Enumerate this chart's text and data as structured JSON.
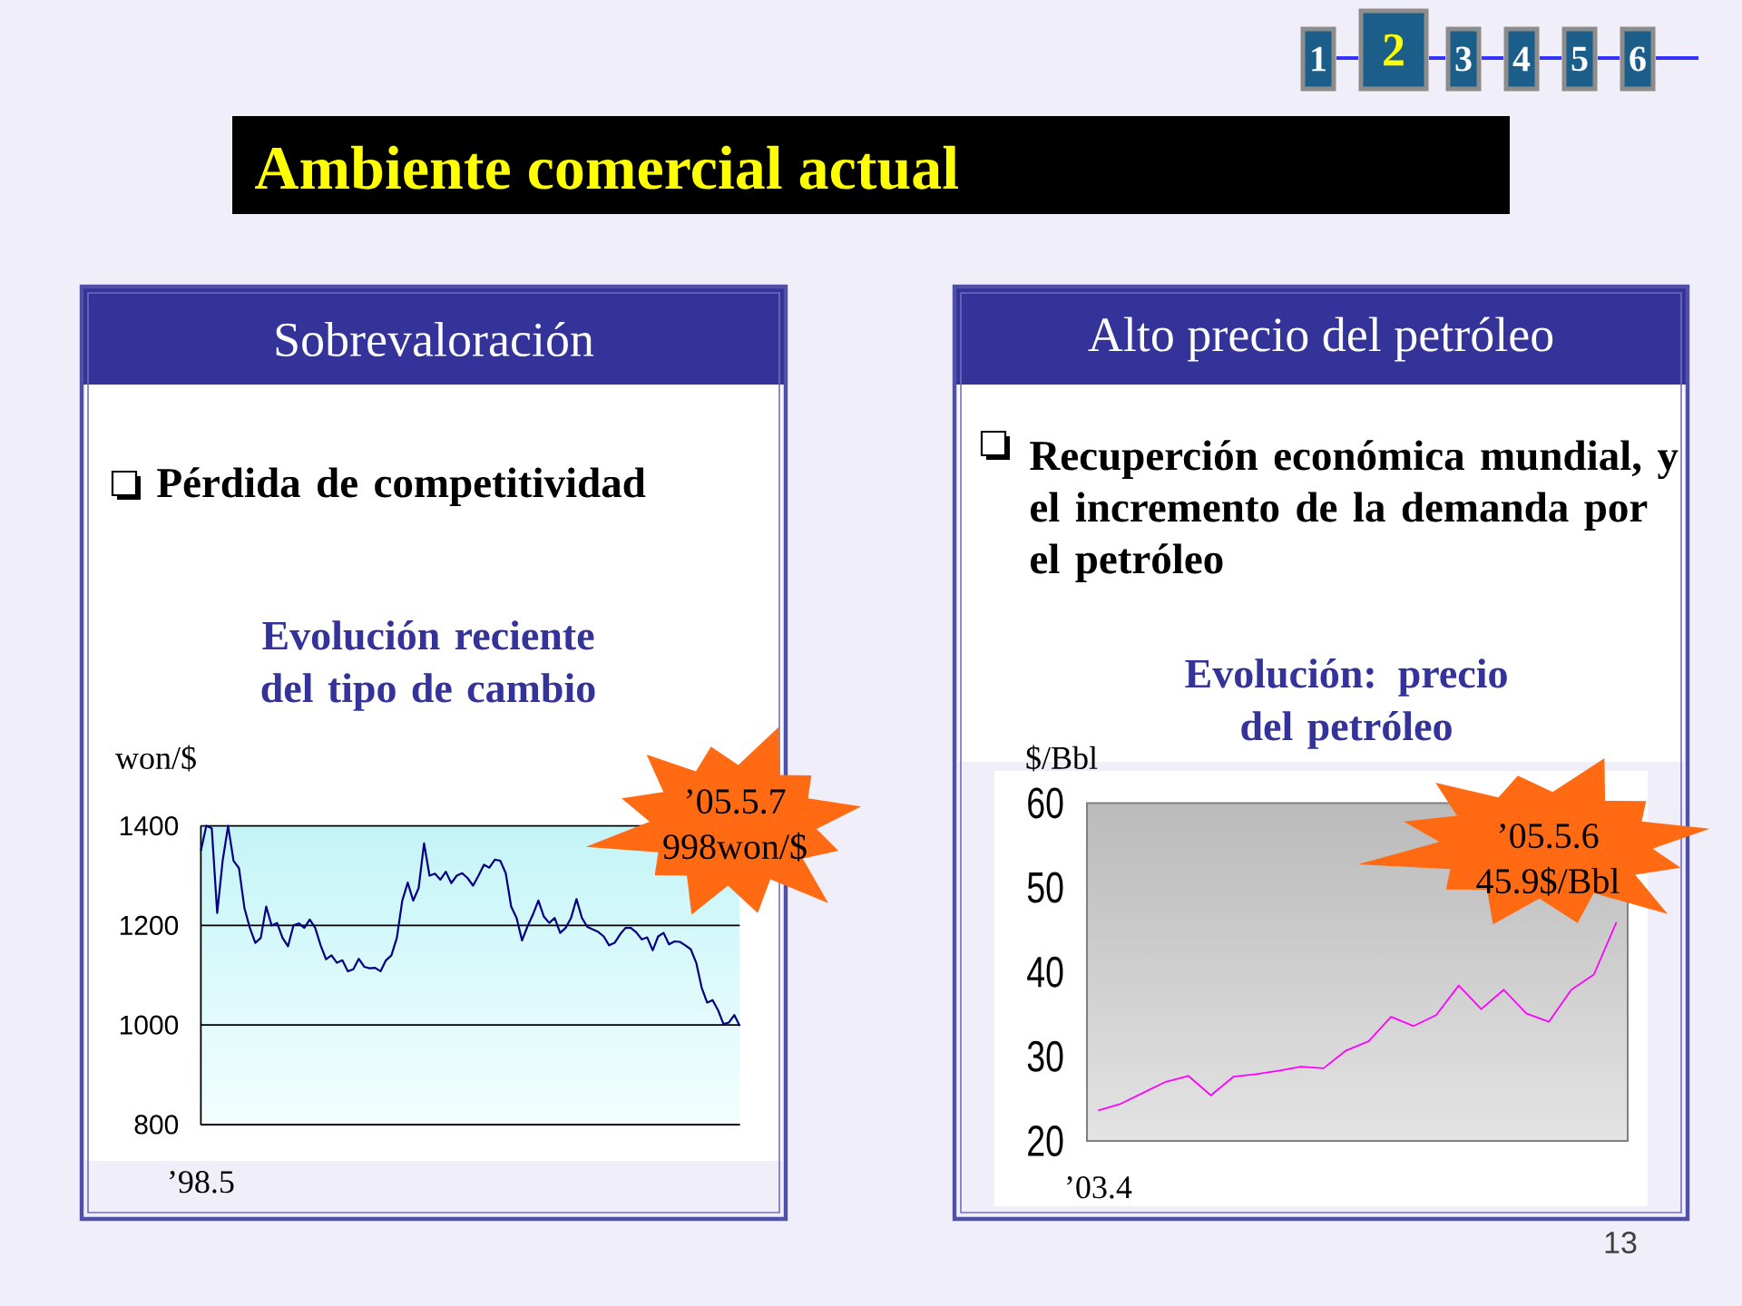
{
  "chart_data": [
    {
      "type": "other",
      "title": "Ambiente comercial actual"
    },
    {
      "type": "line",
      "title": "Evolución reciente del tipo de cambio",
      "ylabel": "won/$",
      "annotations": [
        "Sobrevaloración",
        "Pérdida de competitividad",
        "’05.5.7 998won/$"
      ],
      "categories": [
        "’98.5",
        null,
        null,
        null,
        null,
        null,
        null,
        null,
        null,
        null,
        null,
        null,
        null,
        null,
        null,
        null,
        null,
        null,
        null,
        null,
        null,
        null,
        null,
        null,
        null,
        null,
        null,
        null,
        null,
        null,
        null,
        null,
        null,
        null,
        null,
        null,
        null,
        null,
        null,
        null,
        null,
        null,
        null,
        null,
        null,
        null,
        null,
        null,
        null,
        null,
        null,
        null,
        null,
        null,
        null,
        null,
        null,
        null,
        null,
        null,
        null,
        null,
        null,
        null,
        null,
        null,
        null,
        null,
        null,
        null,
        null,
        null,
        null,
        null,
        null,
        null,
        null,
        null,
        null,
        null,
        null,
        null,
        null,
        null,
        null,
        null,
        null,
        null,
        null,
        null,
        null,
        null,
        null,
        null,
        null,
        null,
        null,
        null,
        null,
        null
      ],
      "series": [
        {
          "color": "#000080",
          "values": [
            1350,
            1400,
            1395,
            1225,
            1330,
            1400,
            1330,
            1315,
            1235,
            1195,
            1165,
            1175,
            1238,
            1200,
            1205,
            1175,
            1158,
            1200,
            1204,
            1195,
            1212,
            1195,
            1160,
            1132,
            1140,
            1125,
            1130,
            1108,
            1112,
            1133,
            1117,
            1114,
            1115,
            1108,
            1130,
            1140,
            1175,
            1250,
            1286,
            1250,
            1275,
            1365,
            1300,
            1304,
            1292,
            1308,
            1285,
            1300,
            1305,
            1295,
            1280,
            1300,
            1322,
            1316,
            1332,
            1330,
            1305,
            1238,
            1215,
            1170,
            1198,
            1222,
            1250,
            1218,
            1205,
            1215,
            1185,
            1195,
            1215,
            1253,
            1215,
            1197,
            1192,
            1187,
            1178,
            1160,
            1165,
            1182,
            1195,
            1195,
            1186,
            1172,
            1176,
            1150,
            1178,
            1185,
            1162,
            1168,
            1167,
            1160,
            1152,
            1125,
            1075,
            1045,
            1050,
            1030,
            1002,
            1005,
            1020,
            998
          ]
        }
      ],
      "ylim": [
        800,
        1400
      ],
      "yticks": [
        800,
        1000,
        1200,
        1400
      ],
      "grid": "y"
    },
    {
      "type": "line",
      "title": "Evolución: precio del petróleo",
      "ylabel": "$/Bbl",
      "annotations": [
        "Alto precio del petróleo",
        "Recuperción económica mundial, y el incremento de la demanda por el petróleo",
        "’05.5.6 45.9$/Bbl",
        "1",
        "2",
        "3",
        "4",
        "5",
        "6",
        "13"
      ],
      "categories": [
        "’03.4",
        null,
        null,
        null,
        null,
        null,
        null,
        null,
        null,
        null,
        null,
        null,
        null,
        null,
        null,
        null,
        null,
        null,
        null,
        null,
        null,
        null,
        null,
        null
      ],
      "series": [
        {
          "color": "#ff00ff",
          "values": [
            23.6,
            24.4,
            25.7,
            27.0,
            27.7,
            25.4,
            27.6,
            27.9,
            28.3,
            28.8,
            28.6,
            30.7,
            31.8,
            34.7,
            33.6,
            34.9,
            38.4,
            35.6,
            37.9,
            35.1,
            34.1,
            37.9,
            39.7,
            45.9
          ]
        }
      ],
      "ylim": [
        20,
        60
      ],
      "yticks": [
        20,
        30,
        40,
        50,
        60
      ]
    }
  ]
}
